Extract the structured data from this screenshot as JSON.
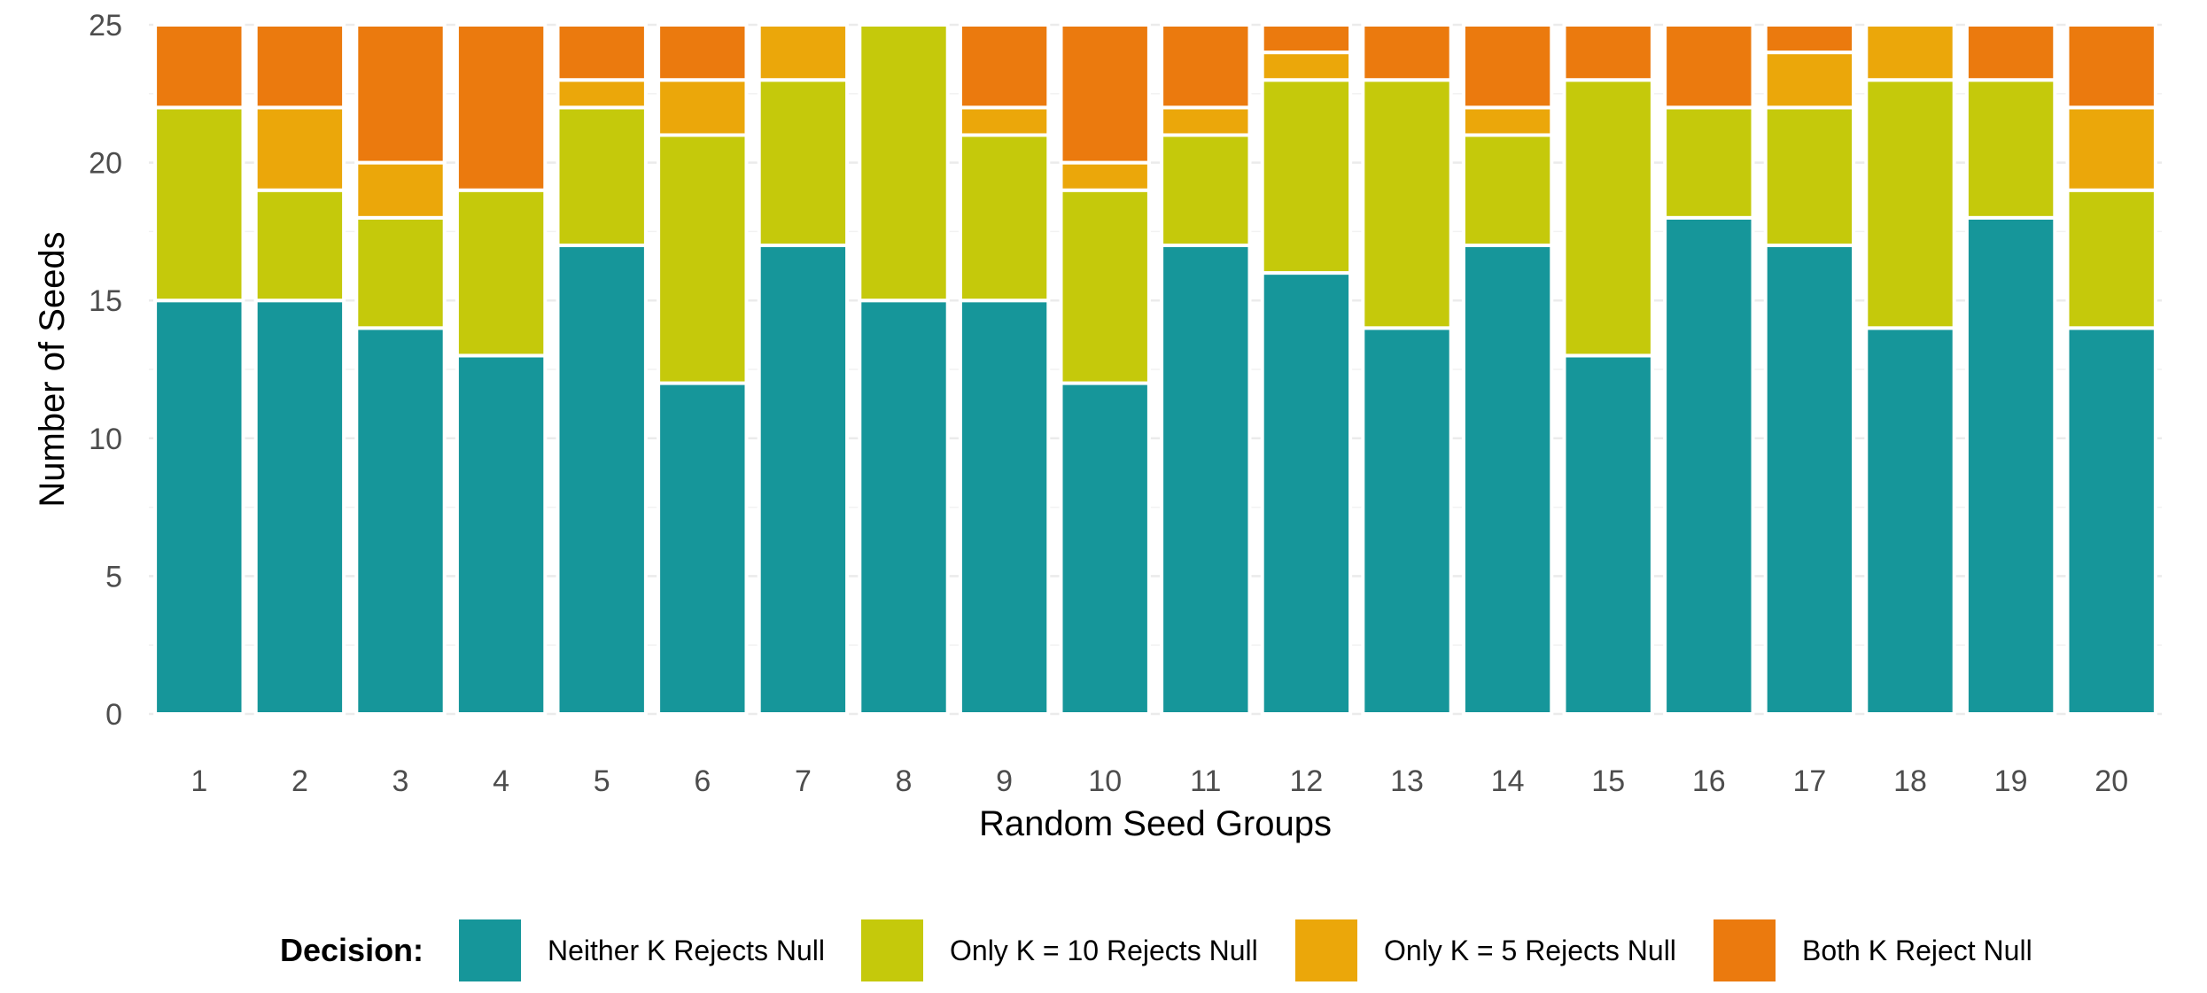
{
  "chart_data": {
    "type": "bar",
    "stacked": true,
    "title": "",
    "xlabel": "Random Seed Groups",
    "ylabel": "Number of Seeds",
    "ylim": [
      0,
      25
    ],
    "yticks": [
      0,
      5,
      10,
      15,
      20,
      25
    ],
    "grid": true,
    "legend_position": "bottom",
    "legend_title": "Decision:",
    "categories": [
      "1",
      "2",
      "3",
      "4",
      "5",
      "6",
      "7",
      "8",
      "9",
      "10",
      "11",
      "12",
      "13",
      "14",
      "15",
      "16",
      "17",
      "18",
      "19",
      "20"
    ],
    "series": [
      {
        "name": "Neither K Rejects Null",
        "color": "#16969A",
        "values": [
          15,
          15,
          14,
          13,
          17,
          12,
          17,
          15,
          15,
          12,
          17,
          16,
          14,
          17,
          13,
          18,
          17,
          14,
          18,
          14
        ]
      },
      {
        "name": "Only K = 10 Rejects Null",
        "color": "#C5C90B",
        "values": [
          7,
          4,
          4,
          6,
          5,
          9,
          6,
          10,
          6,
          7,
          4,
          7,
          9,
          4,
          10,
          4,
          5,
          9,
          5,
          5
        ]
      },
      {
        "name": "Only K = 5 Rejects Null",
        "color": "#EBA70A",
        "values": [
          0,
          3,
          2,
          0,
          1,
          2,
          2,
          0,
          1,
          1,
          1,
          1,
          0,
          1,
          0,
          0,
          2,
          2,
          0,
          3
        ]
      },
      {
        "name": "Both K Reject Null",
        "color": "#EB7A0E",
        "values": [
          3,
          3,
          5,
          6,
          2,
          2,
          0,
          0,
          3,
          5,
          3,
          1,
          2,
          3,
          2,
          3,
          1,
          0,
          2,
          3
        ]
      }
    ]
  }
}
